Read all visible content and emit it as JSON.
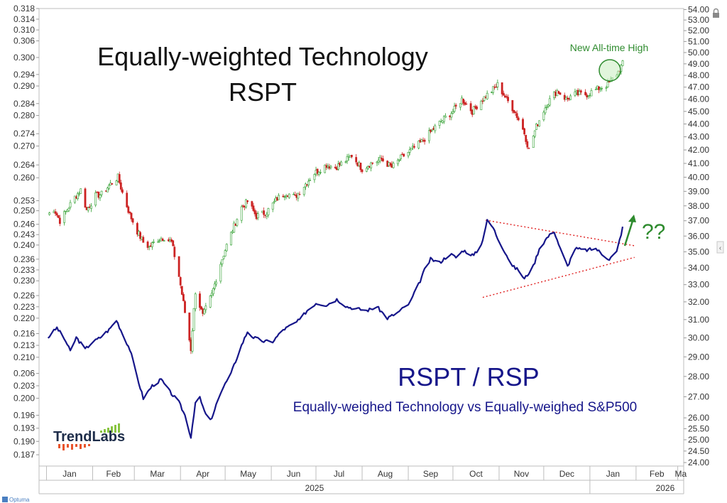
{
  "chart_data": {
    "type": "line",
    "title": "Equally-weighted Technology",
    "subtitle": "RSPT",
    "ratio_title": "RSPT / RSP",
    "ratio_subtitle": "Equally-weighed Technology vs Equally-weighed S&P500",
    "annotation_high": "New All-time High",
    "annotation_question": "??",
    "logo_text": "TrendLabs",
    "footer_brand": "Optuma",
    "x_month_labels": [
      "Jan",
      "Feb",
      "Mar",
      "Apr",
      "May",
      "Jun",
      "Jul",
      "Aug",
      "Sep",
      "Oct",
      "Nov",
      "Dec",
      "Jan",
      "Feb",
      "Ma"
    ],
    "x_year_labels": [
      "2025",
      "2026"
    ],
    "left_axis": {
      "scale": "log",
      "range": [
        0.1845,
        0.318
      ],
      "tick_labels": [
        "0.318",
        "0.314",
        "0.310",
        "0.306",
        "0.300",
        "0.294",
        "0.290",
        "0.284",
        "0.280",
        "0.274",
        "0.270",
        "0.264",
        "0.260",
        "0.253",
        "0.250",
        "0.246",
        "0.243",
        "0.240",
        "0.236",
        "0.233",
        "0.230",
        "0.226",
        "0.223",
        "0.220",
        "0.216",
        "0.213",
        "0.210",
        "0.206",
        "0.203",
        "0.200",
        "0.196",
        "0.193",
        "0.190",
        "0.187"
      ]
    },
    "right_axis": {
      "scale": "log",
      "range": [
        23.85,
        54.1
      ],
      "tick_labels": [
        "54.00",
        "53.00",
        "52.00",
        "51.00",
        "50.00",
        "49.00",
        "48.00",
        "47.00",
        "46.00",
        "45.00",
        "44.00",
        "43.00",
        "42.00",
        "41.00",
        "40.00",
        "39.00",
        "38.00",
        "37.00",
        "36.00",
        "35.00",
        "34.00",
        "33.00",
        "32.00",
        "31.00",
        "30.00",
        "29.00",
        "28.00",
        "27.00",
        "26.00",
        "25.50",
        "25.00",
        "24.50",
        "24.00"
      ]
    },
    "grid": false,
    "series": [
      {
        "name": "RSPT",
        "style": "candlestick",
        "axis": "right",
        "up_color": "#2e9e2e",
        "down_color": "#cc2222",
        "values": [
          [
            "2025-01-02",
            37.4
          ],
          [
            "2025-01-06",
            37.8
          ],
          [
            "2025-01-10",
            37.0
          ],
          [
            "2025-01-14",
            37.6
          ],
          [
            "2025-01-20",
            38.6
          ],
          [
            "2025-01-24",
            39.1
          ],
          [
            "2025-01-28",
            37.7
          ],
          [
            "2025-02-03",
            38.7
          ],
          [
            "2025-02-07",
            38.8
          ],
          [
            "2025-02-12",
            39.4
          ],
          [
            "2025-02-18",
            40.0
          ],
          [
            "2025-02-21",
            38.9
          ],
          [
            "2025-02-26",
            37.4
          ],
          [
            "2025-03-03",
            36.3
          ],
          [
            "2025-03-07",
            35.6
          ],
          [
            "2025-03-11",
            35.3
          ],
          [
            "2025-03-17",
            35.8
          ],
          [
            "2025-03-21",
            35.9
          ],
          [
            "2025-03-26",
            35.6
          ],
          [
            "2025-03-31",
            33.5
          ],
          [
            "2025-04-04",
            31.4
          ],
          [
            "2025-04-08",
            29.4
          ],
          [
            "2025-04-11",
            32.6
          ],
          [
            "2025-04-16",
            31.2
          ],
          [
            "2025-04-22",
            32.4
          ],
          [
            "2025-04-28",
            34.3
          ],
          [
            "2025-05-02",
            35.4
          ],
          [
            "2025-05-06",
            36.4
          ],
          [
            "2025-05-12",
            37.9
          ],
          [
            "2025-05-16",
            38.3
          ],
          [
            "2025-05-22",
            37.3
          ],
          [
            "2025-05-29",
            37.6
          ],
          [
            "2025-06-05",
            38.5
          ],
          [
            "2025-06-11",
            38.9
          ],
          [
            "2025-06-17",
            38.6
          ],
          [
            "2025-06-23",
            39.4
          ],
          [
            "2025-06-30",
            40.3
          ],
          [
            "2025-07-08",
            40.9
          ],
          [
            "2025-07-14",
            40.7
          ],
          [
            "2025-07-21",
            41.2
          ],
          [
            "2025-07-25",
            41.6
          ],
          [
            "2025-08-01",
            40.6
          ],
          [
            "2025-08-07",
            41.0
          ],
          [
            "2025-08-14",
            41.3
          ],
          [
            "2025-08-21",
            40.7
          ],
          [
            "2025-08-27",
            41.4
          ],
          [
            "2025-09-03",
            42.0
          ],
          [
            "2025-09-10",
            42.6
          ],
          [
            "2025-09-17",
            43.5
          ],
          [
            "2025-09-24",
            44.3
          ],
          [
            "2025-10-01",
            45.0
          ],
          [
            "2025-10-07",
            46.0
          ],
          [
            "2025-10-14",
            45.0
          ],
          [
            "2025-10-20",
            45.9
          ],
          [
            "2025-10-27",
            46.7
          ],
          [
            "2025-10-31",
            47.2
          ],
          [
            "2025-11-06",
            46.0
          ],
          [
            "2025-11-12",
            44.9
          ],
          [
            "2025-11-18",
            43.3
          ],
          [
            "2025-11-21",
            42.0
          ],
          [
            "2025-11-26",
            43.8
          ],
          [
            "2025-12-03",
            45.6
          ],
          [
            "2025-12-10",
            46.7
          ],
          [
            "2025-12-16",
            46.0
          ],
          [
            "2025-12-22",
            46.4
          ],
          [
            "2025-12-30",
            46.4
          ],
          [
            "2026-01-07",
            46.9
          ],
          [
            "2026-01-13",
            47.2
          ],
          [
            "2026-01-20",
            48.3
          ],
          [
            "2026-01-23",
            49.0
          ]
        ]
      },
      {
        "name": "RSPT / RSP",
        "style": "line",
        "axis": "left",
        "color": "#16168a",
        "values": [
          [
            "2025-01-02",
            0.215
          ],
          [
            "2025-01-08",
            0.2175
          ],
          [
            "2025-01-14",
            0.214
          ],
          [
            "2025-01-17",
            0.2115
          ],
          [
            "2025-01-21",
            0.215
          ],
          [
            "2025-01-27",
            0.212
          ],
          [
            "2025-01-31",
            0.2135
          ],
          [
            "2025-02-06",
            0.215
          ],
          [
            "2025-02-12",
            0.217
          ],
          [
            "2025-02-17",
            0.2195
          ],
          [
            "2025-02-21",
            0.216
          ],
          [
            "2025-02-26",
            0.212
          ],
          [
            "2025-03-03",
            0.205
          ],
          [
            "2025-03-07",
            0.2
          ],
          [
            "2025-03-13",
            0.203
          ],
          [
            "2025-03-19",
            0.2045
          ],
          [
            "2025-03-25",
            0.2015
          ],
          [
            "2025-03-31",
            0.199
          ],
          [
            "2025-04-04",
            0.196
          ],
          [
            "2025-04-08",
            0.191
          ],
          [
            "2025-04-11",
            0.199
          ],
          [
            "2025-04-14",
            0.2
          ],
          [
            "2025-04-18",
            0.196
          ],
          [
            "2025-04-22",
            0.195
          ],
          [
            "2025-04-28",
            0.2015
          ],
          [
            "2025-05-05",
            0.206
          ],
          [
            "2025-05-12",
            0.213
          ],
          [
            "2025-05-16",
            0.2165
          ],
          [
            "2025-05-20",
            0.215
          ],
          [
            "2025-05-27",
            0.214
          ],
          [
            "2025-06-02",
            0.214
          ],
          [
            "2025-06-09",
            0.217
          ],
          [
            "2025-06-16",
            0.2185
          ],
          [
            "2025-06-20",
            0.2195
          ],
          [
            "2025-06-25",
            0.222
          ],
          [
            "2025-07-01",
            0.224
          ],
          [
            "2025-07-08",
            0.2235
          ],
          [
            "2025-07-15",
            0.225
          ],
          [
            "2025-07-22",
            0.223
          ],
          [
            "2025-07-28",
            0.2225
          ],
          [
            "2025-08-04",
            0.222
          ],
          [
            "2025-08-11",
            0.223
          ],
          [
            "2025-08-18",
            0.22
          ],
          [
            "2025-08-25",
            0.2215
          ],
          [
            "2025-09-02",
            0.224
          ],
          [
            "2025-09-08",
            0.229
          ],
          [
            "2025-09-12",
            0.233
          ],
          [
            "2025-09-16",
            0.236
          ],
          [
            "2025-09-22",
            0.235
          ],
          [
            "2025-09-29",
            0.2375
          ],
          [
            "2025-10-03",
            0.2365
          ],
          [
            "2025-10-08",
            0.2385
          ],
          [
            "2025-10-15",
            0.237
          ],
          [
            "2025-10-20",
            0.24
          ],
          [
            "2025-10-24",
            0.247
          ],
          [
            "2025-10-28",
            0.245
          ],
          [
            "2025-10-31",
            0.242
          ],
          [
            "2025-11-05",
            0.238
          ],
          [
            "2025-11-10",
            0.234
          ],
          [
            "2025-11-14",
            0.233
          ],
          [
            "2025-11-18",
            0.2305
          ],
          [
            "2025-11-24",
            0.234
          ],
          [
            "2025-11-28",
            0.239
          ],
          [
            "2025-12-03",
            0.242
          ],
          [
            "2025-12-08",
            0.244
          ],
          [
            "2025-12-12",
            0.239
          ],
          [
            "2025-12-17",
            0.234
          ],
          [
            "2025-12-22",
            0.239
          ],
          [
            "2025-12-29",
            0.2385
          ],
          [
            "2026-01-05",
            0.239
          ],
          [
            "2026-01-09",
            0.2375
          ],
          [
            "2026-01-14",
            0.236
          ],
          [
            "2026-01-19",
            0.238
          ],
          [
            "2026-01-23",
            0.245
          ]
        ]
      }
    ],
    "trendlines": [
      {
        "from": [
          "2025-10-23",
          0.2472
        ],
        "to": [
          "2026-01-31",
          0.2398
        ]
      },
      {
        "from": [
          "2025-10-21",
          0.2255
        ],
        "to": [
          "2026-01-31",
          0.2365
        ]
      }
    ],
    "x_range": [
      "2024-12-27",
      "2026-03-05"
    ],
    "colors": {
      "ratio_line": "#16168a",
      "up_candle": "#2e9e2e",
      "down_candle": "#cc2222",
      "trendline": "#e02020",
      "annotation_green": "#2e8b2e",
      "logo_text": "#1e2d4a",
      "logo_bars_top": "#88c440",
      "logo_bars_bottom": "#e8542c"
    }
  }
}
